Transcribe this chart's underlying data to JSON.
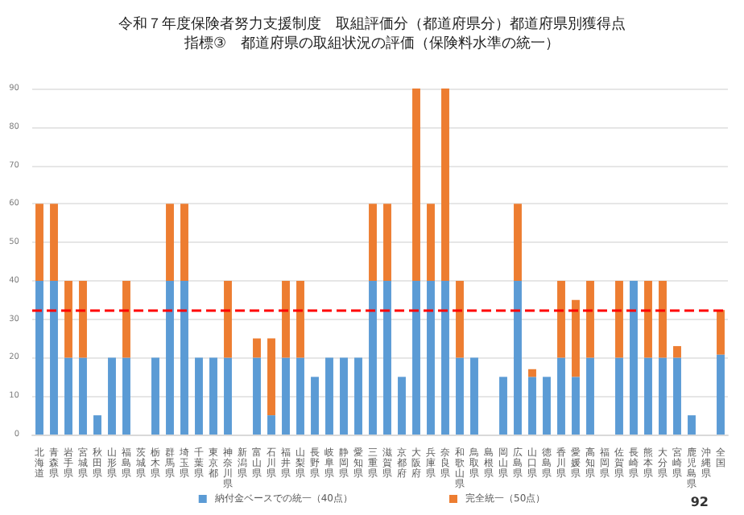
{
  "chart_data": {
    "type": "bar",
    "stacked": true,
    "title": "令和７年度保険者努力支援制度　取組評価分（都道府県分）都道府県別獲得点",
    "subtitle": "指標③　都道府県の取組状況の評価（保険料水準の統一）",
    "categories": [
      "北海道",
      "青森県",
      "岩手県",
      "宮城県",
      "秋田県",
      "山形県",
      "福島県",
      "茨城県",
      "栃木県",
      "群馬県",
      "埼玉県",
      "千葉県",
      "東京都",
      "神奈川県",
      "新潟県",
      "富山県",
      "石川県",
      "福井県",
      "山梨県",
      "長野県",
      "岐阜県",
      "静岡県",
      "愛知県",
      "三重県",
      "滋賀県",
      "京都府",
      "大阪府",
      "兵庫県",
      "奈良県",
      "和歌山県",
      "鳥取県",
      "島根県",
      "岡山県",
      "広島県",
      "山口県",
      "徳島県",
      "香川県",
      "愛媛県",
      "高知県",
      "福岡県",
      "佐賀県",
      "長崎県",
      "熊本県",
      "大分県",
      "宮崎県",
      "鹿児島県",
      "沖縄県",
      "全国"
    ],
    "series": [
      {
        "name": "納付金ベースでの統一（40点）",
        "color": "#5b9bd5",
        "values": [
          40,
          40,
          20,
          20,
          5,
          20,
          20,
          0,
          20,
          40,
          40,
          20,
          20,
          20,
          0,
          20,
          5,
          20,
          20,
          15,
          20,
          20,
          20,
          40,
          40,
          15,
          40,
          40,
          40,
          20,
          20,
          0,
          15,
          40,
          15,
          15,
          20,
          15,
          20,
          0,
          20,
          40,
          20,
          20,
          20,
          5,
          0,
          20.8
        ]
      },
      {
        "name": "完全統一（50点）",
        "color": "#ed7d31",
        "values": [
          20,
          20,
          20,
          20,
          0,
          0,
          20,
          0,
          0,
          20,
          20,
          0,
          0,
          20,
          0,
          5,
          20,
          20,
          20,
          0,
          0,
          0,
          0,
          20,
          20,
          0,
          50,
          20,
          50,
          20,
          0,
          0,
          0,
          20,
          2,
          0,
          20,
          20,
          20,
          0,
          20,
          0,
          20,
          20,
          3,
          0,
          0,
          11.6
        ]
      }
    ],
    "ylim": [
      0,
      90
    ],
    "yticks": [
      0,
      10,
      20,
      30,
      40,
      50,
      60,
      70,
      80,
      90
    ],
    "grid": "y",
    "legend": "bottom",
    "ref_lines": [
      {
        "axis": "y",
        "value": 32.4,
        "color": "#ff0000",
        "line_style": "dashed"
      }
    ],
    "annotations": [
      "92"
    ]
  }
}
